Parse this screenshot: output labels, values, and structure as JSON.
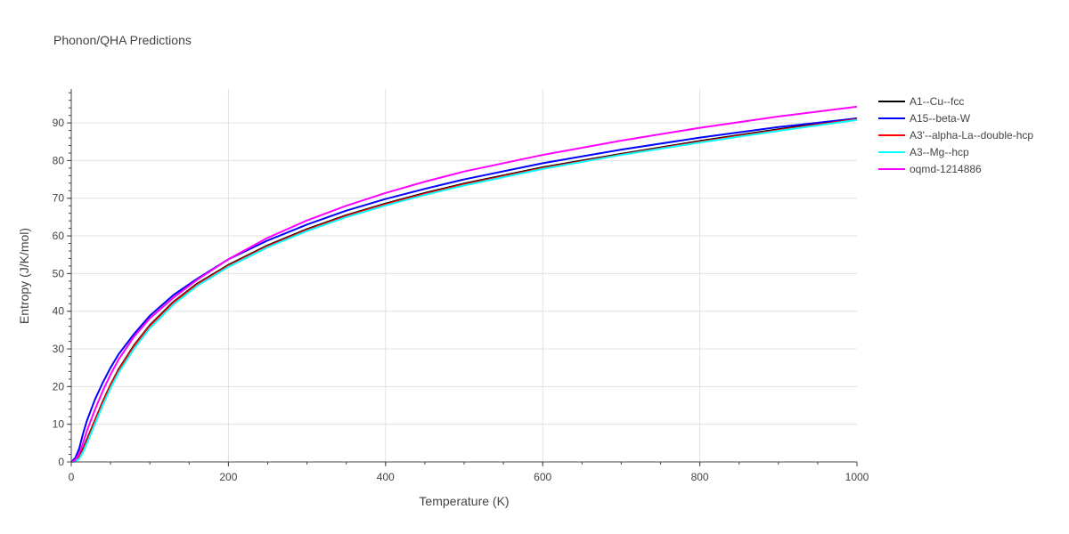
{
  "chart_data": {
    "type": "line",
    "title": "Phonon/QHA Predictions",
    "xlabel": "Temperature (K)",
    "ylabel": "Entropy (J/K/mol)",
    "xlim": [
      0,
      1000
    ],
    "ylim": [
      0,
      99
    ],
    "x_ticks": [
      0,
      200,
      400,
      600,
      800,
      1000
    ],
    "y_ticks": [
      0,
      10,
      20,
      30,
      40,
      50,
      60,
      70,
      80,
      90
    ],
    "grid": true,
    "legend_position": "right",
    "series": [
      {
        "name": "A1--Cu--fcc",
        "color": "#000000",
        "x": [
          0,
          5,
          10,
          15,
          20,
          30,
          40,
          50,
          60,
          80,
          100,
          130,
          160,
          200,
          250,
          300,
          350,
          400,
          450,
          500,
          600,
          700,
          800,
          900,
          1000
        ],
        "y": [
          0,
          0.3,
          1.5,
          3.5,
          6,
          11,
          16,
          20.5,
          24.5,
          31,
          36.3,
          42.5,
          47.3,
          52.3,
          57.5,
          61.8,
          65.5,
          68.6,
          71.4,
          73.9,
          78.2,
          81.8,
          85.2,
          88.3,
          91.2
        ]
      },
      {
        "name": "A15--beta-W",
        "color": "#0000ff",
        "x": [
          0,
          5,
          10,
          15,
          20,
          30,
          40,
          50,
          60,
          80,
          100,
          130,
          160,
          200,
          250,
          300,
          350,
          400,
          450,
          500,
          600,
          700,
          800,
          900,
          1000
        ],
        "y": [
          0,
          1,
          3.5,
          7.5,
          11,
          16.5,
          21,
          25,
          28.5,
          34,
          38.8,
          44.3,
          48.6,
          53.8,
          58.8,
          63,
          66.7,
          69.8,
          72.5,
          75,
          79.3,
          82.9,
          86.1,
          88.9,
          91.2
        ]
      },
      {
        "name": "A3'--alpha-La--double-hcp",
        "color": "#ff0000",
        "x": [
          0,
          5,
          10,
          15,
          20,
          30,
          40,
          50,
          60,
          80,
          100,
          130,
          160,
          200,
          250,
          300,
          350,
          400,
          450,
          500,
          600,
          700,
          800,
          900,
          1000
        ],
        "y": [
          0,
          0.2,
          1.2,
          3.2,
          5.7,
          10.8,
          15.8,
          20.3,
          24.3,
          30.8,
          36.1,
          42.3,
          47.1,
          52.1,
          57.3,
          61.6,
          65.3,
          68.4,
          71.2,
          73.7,
          78,
          81.6,
          85,
          88.1,
          91
        ]
      },
      {
        "name": "A3--Mg--hcp",
        "color": "#00ffff",
        "x": [
          0,
          5,
          10,
          15,
          20,
          30,
          40,
          50,
          60,
          80,
          100,
          130,
          160,
          200,
          250,
          300,
          350,
          400,
          450,
          500,
          600,
          700,
          800,
          900,
          1000
        ],
        "y": [
          0,
          0.1,
          0.8,
          2.6,
          5,
          10,
          15,
          19.6,
          23.6,
          30.1,
          35.5,
          41.8,
          46.7,
          51.8,
          57,
          61.3,
          65,
          68.1,
          70.9,
          73.4,
          77.8,
          81.5,
          84.8,
          87.9,
          90.8
        ]
      },
      {
        "name": "oqmd-1214886",
        "color": "#ff00ff",
        "x": [
          0,
          5,
          10,
          15,
          20,
          30,
          40,
          50,
          60,
          80,
          100,
          130,
          160,
          200,
          250,
          300,
          350,
          400,
          450,
          500,
          600,
          700,
          800,
          900,
          1000
        ],
        "y": [
          0,
          0.5,
          2.2,
          5,
          8.3,
          13.8,
          18.8,
          23.2,
          27.1,
          33.3,
          38.1,
          43.6,
          48.3,
          53.8,
          59.5,
          64.1,
          68,
          71.4,
          74.4,
          77.1,
          81.5,
          85.3,
          88.7,
          91.7,
          94.3
        ]
      }
    ]
  }
}
